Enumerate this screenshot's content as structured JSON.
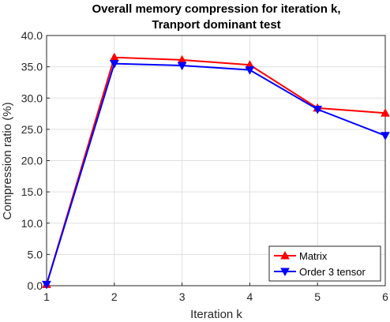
{
  "chart_data": {
    "type": "line",
    "title_lines": [
      "Overall memory compression for iteration k,",
      "Tranport dominant test"
    ],
    "xlabel": "Iteration k",
    "ylabel": "Compression ratio (%)",
    "x": [
      1,
      2,
      3,
      4,
      5,
      6
    ],
    "xlim": [
      1,
      6
    ],
    "ylim": [
      0,
      40
    ],
    "xticks": [
      "1",
      "2",
      "3",
      "4",
      "5",
      "6"
    ],
    "yticks": [
      "0.0",
      "5.0",
      "10.0",
      "15.0",
      "20.0",
      "25.0",
      "30.0",
      "35.0",
      "40.0"
    ],
    "grid": true,
    "legend_position": "bottom-right",
    "series": [
      {
        "name": "Matrix",
        "color": "#ff0000",
        "marker": "triangle-up",
        "values": [
          0.2,
          36.5,
          36.1,
          35.3,
          28.4,
          27.6
        ]
      },
      {
        "name": "Order 3 tensor",
        "color": "#0000ff",
        "marker": "triangle-down",
        "values": [
          0.2,
          35.5,
          35.2,
          34.5,
          28.2,
          24.0
        ]
      }
    ]
  }
}
